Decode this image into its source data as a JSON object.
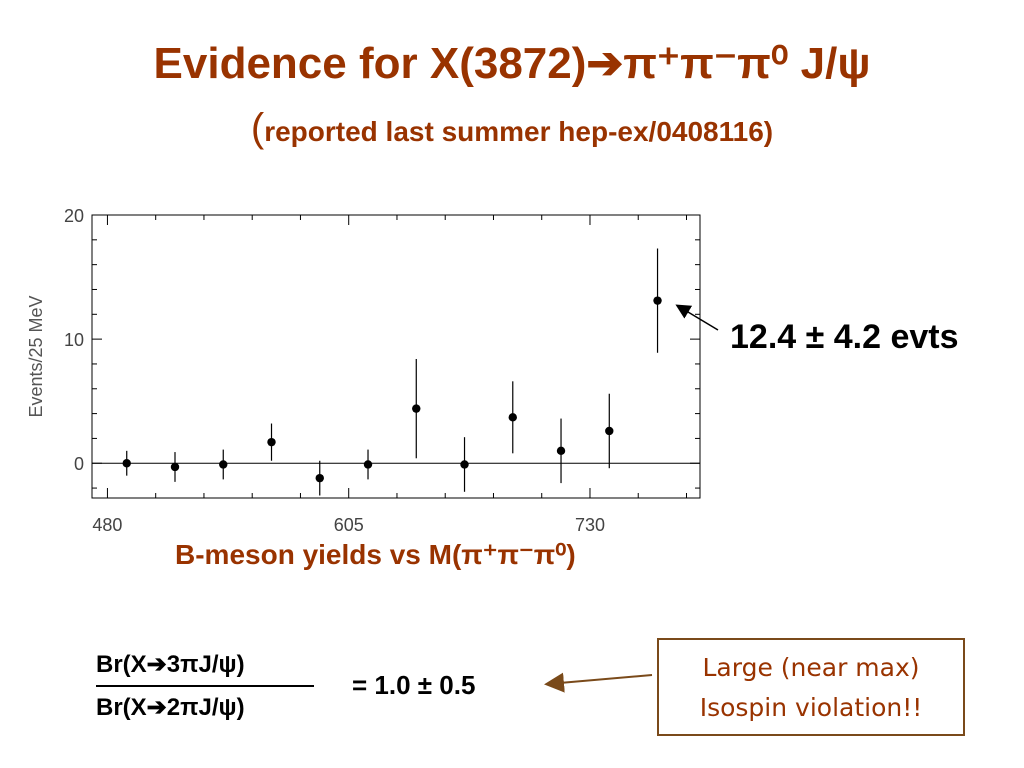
{
  "title": {
    "main": "Evidence for X(3872)➔π⁺π⁻π⁰ J/ψ",
    "paren_open": "(",
    "sub": "reported last summer hep-ex/0408116)"
  },
  "annotation": "12.4 ± 4.2 evts",
  "caption": "B-meson yields vs M(π⁺π⁻π⁰)",
  "ratio": {
    "numerator": "Br(X➔3πJ/ψ)",
    "denominator": "Br(X➔2πJ/ψ)",
    "result": "= 1.0 ± 0.5"
  },
  "note": {
    "line1": "Large (near max)",
    "line2": "Isospin violation!!"
  },
  "colors": {
    "title": "#993300",
    "box_border": "#7a4a1a"
  },
  "chart_data": {
    "type": "scatter",
    "ylabel": "Events/25 MeV",
    "xlabel": "",
    "xlim": [
      472,
      787
    ],
    "ylim": [
      -2.8,
      20
    ],
    "x_ticks": [
      480,
      605,
      730
    ],
    "y_ticks": [
      0,
      10,
      20
    ],
    "points": [
      {
        "x": 490,
        "y": 0.0,
        "err": 1.0
      },
      {
        "x": 515,
        "y": -0.3,
        "err": 1.2
      },
      {
        "x": 540,
        "y": -0.1,
        "err": 1.2
      },
      {
        "x": 565,
        "y": 1.7,
        "err": 1.5
      },
      {
        "x": 590,
        "y": -1.2,
        "err": 1.4
      },
      {
        "x": 615,
        "y": -0.1,
        "err": 1.2
      },
      {
        "x": 640,
        "y": 4.4,
        "err": 4.0
      },
      {
        "x": 665,
        "y": -0.1,
        "err": 2.2
      },
      {
        "x": 690,
        "y": 3.7,
        "err": 2.9
      },
      {
        "x": 715,
        "y": 1.0,
        "err": 2.6
      },
      {
        "x": 740,
        "y": 2.6,
        "err": 3.0
      },
      {
        "x": 765,
        "y": 13.1,
        "err": 4.2
      }
    ],
    "zero_line": true
  }
}
